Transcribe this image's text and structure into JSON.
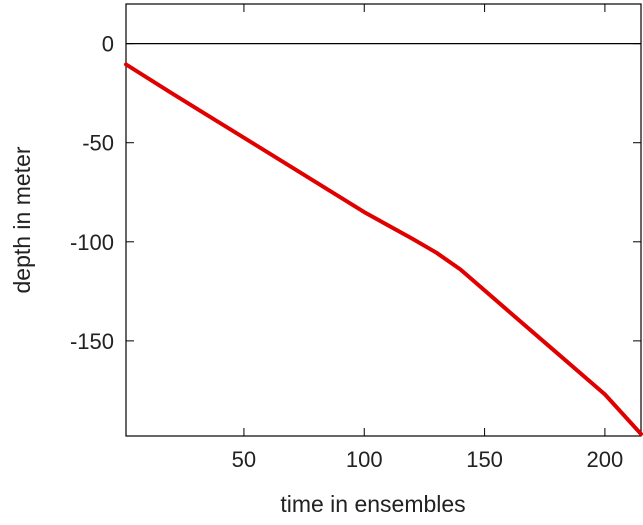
{
  "chart_data": {
    "type": "line",
    "xlabel": "time in ensembles",
    "ylabel": "depth in meter",
    "xlim": [
      1,
      215
    ],
    "ylim": [
      -198,
      20
    ],
    "xticks": [
      50,
      100,
      150,
      200
    ],
    "yticks": [
      0,
      -50,
      -100,
      -150
    ],
    "reference_line_y": 0,
    "grid": false,
    "series": [
      {
        "color": "#e00000",
        "x": [
          1,
          20,
          40,
          60,
          80,
          100,
          120,
          130,
          140,
          160,
          180,
          200,
          215
        ],
        "y": [
          -10.5,
          -25,
          -40,
          -55,
          -70,
          -85,
          -98.5,
          -105.5,
          -114,
          -135,
          -156,
          -177,
          -197
        ]
      }
    ]
  }
}
